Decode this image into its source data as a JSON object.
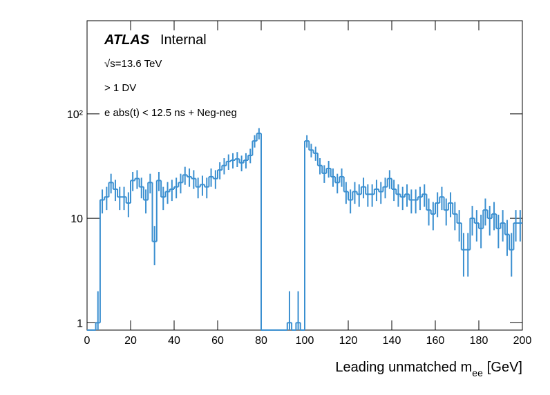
{
  "chart_data": {
    "type": "histogram",
    "experiment": "ATLAS",
    "status": "Internal",
    "annotations": [
      "√s=13.6 TeV",
      "> 1 DV",
      "e abs(t) < 12.5 ns + Neg-neg"
    ],
    "x_label": {
      "main": "Leading unmatched m",
      "sub": "ee",
      "unit": "[GeV]"
    },
    "bins": [
      0,
      2,
      4,
      6,
      8,
      10,
      12,
      14,
      16,
      18,
      20,
      22,
      24,
      26,
      28,
      30,
      32,
      34,
      36,
      38,
      40,
      42,
      44,
      46,
      48,
      50,
      52,
      54,
      56,
      58,
      60,
      62,
      64,
      66,
      68,
      70,
      72,
      74,
      76,
      78,
      80,
      82,
      84,
      86,
      88,
      90,
      92,
      94,
      96,
      98,
      100,
      102,
      104,
      106,
      108,
      110,
      112,
      114,
      116,
      118,
      120,
      122,
      124,
      126,
      128,
      130,
      132,
      134,
      136,
      138,
      140,
      142,
      144,
      146,
      148,
      150,
      152,
      154,
      156,
      158,
      160,
      162,
      164,
      166,
      168,
      170,
      172,
      174,
      176,
      178,
      180,
      182,
      184,
      186,
      188,
      190,
      192,
      194,
      196,
      198,
      200
    ],
    "values": [
      0,
      0,
      1,
      15,
      16,
      22,
      19,
      16,
      16,
      14,
      23,
      24,
      20,
      15,
      22,
      6,
      23,
      16,
      18,
      19,
      20,
      22,
      26,
      25,
      24,
      20,
      21,
      20,
      25,
      24,
      29,
      32,
      35,
      36,
      37,
      34,
      36,
      40,
      55,
      65,
      0,
      0,
      0,
      0,
      0,
      0,
      1,
      0,
      1,
      0,
      55,
      45,
      42,
      32,
      27,
      30,
      25,
      22,
      25,
      18,
      15,
      18,
      17,
      20,
      17,
      17,
      19,
      18,
      20,
      24,
      19,
      17,
      16,
      17,
      15,
      15,
      16,
      17,
      12,
      11,
      14,
      16,
      12,
      14,
      11,
      9,
      5,
      5,
      10,
      9,
      8,
      12,
      10,
      11,
      8,
      9,
      7,
      5,
      9,
      9
    ],
    "color": "#3a8fd0",
    "log_y": true,
    "xlim": [
      0,
      200
    ],
    "xticks": [
      0,
      20,
      40,
      60,
      80,
      100,
      120,
      140,
      160,
      180,
      200
    ],
    "ylim": [
      0.85,
      780
    ],
    "yticks": [
      1,
      10,
      {
        "value": 100,
        "label": "10²"
      }
    ]
  }
}
